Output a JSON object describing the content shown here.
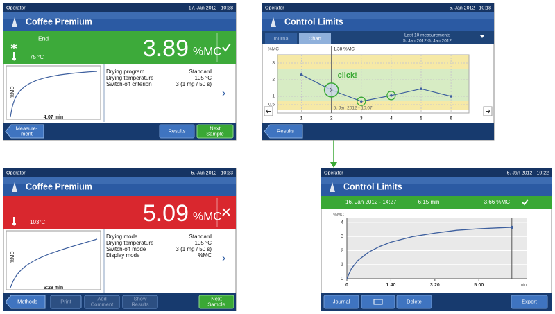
{
  "screens": [
    {
      "operator": "Operator",
      "datetime": "17. Jan 2012 - 10:38",
      "title": "Coffee Premium",
      "status": "End",
      "temperature": "75 °C",
      "result": "3.89",
      "unit": "%MC",
      "chart": {
        "y_label": "%MC",
        "x_label": "4:07 min"
      },
      "details": [
        [
          "Drying program",
          "Standard"
        ],
        [
          "Drying temperature",
          "105 °C"
        ],
        [
          "Switch-off criterion",
          "3 (1 mg / 50 s)"
        ]
      ],
      "buttons": [
        [
          "Measure-",
          "ment"
        ],
        [
          "Results"
        ],
        [
          "Next",
          "Sample"
        ]
      ]
    },
    {
      "operator": "Operator",
      "datetime": "5. Jan 2012 - 10:18",
      "title": "Control Limits",
      "tabs": [
        "Journal",
        "Chart"
      ],
      "range_title": "Last 10 measurements",
      "range_dates": "5. Jan 2012-5. Jan 2012",
      "chart": {
        "type": "line",
        "y_label": "%MC",
        "x": [
          1,
          2,
          3,
          4,
          5,
          6
        ],
        "values": [
          2.3,
          1.38,
          0.7,
          1.05,
          1.45,
          1.0
        ],
        "xlim": [
          0.2,
          6.6
        ],
        "ylim": [
          0,
          3.5
        ],
        "xticks": [
          1,
          2,
          3,
          4,
          5,
          6
        ],
        "yticks": [
          0.5,
          1,
          2,
          3
        ],
        "cursor_label": "1.38 %MC",
        "cursor_date": "5. Jan 2012 - 10:07",
        "annotation": "click!",
        "color": "#3d5f9e"
      },
      "buttons": [
        [
          "Results"
        ]
      ]
    },
    {
      "operator": "Operator",
      "datetime": "5. Jan 2012 - 10:33",
      "title": "Coffee Premium",
      "temperature": "103°C",
      "result": "5.09",
      "unit": "%MC",
      "chart": {
        "y_label": "%MC",
        "x_label": "6:28 min"
      },
      "details": [
        [
          "Drying mode",
          "Standard"
        ],
        [
          "Drying temperature",
          "105 °C"
        ],
        [
          "Switch-off mode",
          "3 (1 mg / 50 s)"
        ],
        [
          "Display mode",
          "%MC"
        ]
      ],
      "buttons": [
        [
          "Methods"
        ],
        [
          "Print"
        ],
        [
          "Add",
          "Comment"
        ],
        [
          "Show",
          "Results"
        ],
        [
          "Next",
          "Sample"
        ]
      ]
    },
    {
      "operator": "Operator",
      "datetime": "5. Jan 2012 - 10:22",
      "title": "Control Limits",
      "summary": [
        "16. Jan 2012 - 14:27",
        "6:15 min",
        "3.66 %MC"
      ],
      "chart": {
        "type": "line",
        "y_label": "%MC",
        "x_unit": "min",
        "x": [
          0,
          10,
          25,
          50,
          75,
          100,
          150,
          200,
          250,
          300,
          350,
          375
        ],
        "values": [
          0,
          0.7,
          1.3,
          1.9,
          2.3,
          2.6,
          3.0,
          3.25,
          3.45,
          3.56,
          3.63,
          3.66
        ],
        "xlim": [
          0,
          410
        ],
        "ylim": [
          0,
          4.3
        ],
        "xticks": [
          0,
          {
            "value": 100,
            "label": "1:40"
          },
          {
            "value": 200,
            "label": "3:20"
          },
          {
            "value": 300,
            "label": "5:00"
          }
        ],
        "yticks": [
          0,
          1,
          2,
          3,
          4
        ],
        "color": "#3d5f9e"
      },
      "buttons": [
        [
          "Journal"
        ],
        [
          "Delete"
        ],
        [
          "Export"
        ]
      ]
    }
  ]
}
